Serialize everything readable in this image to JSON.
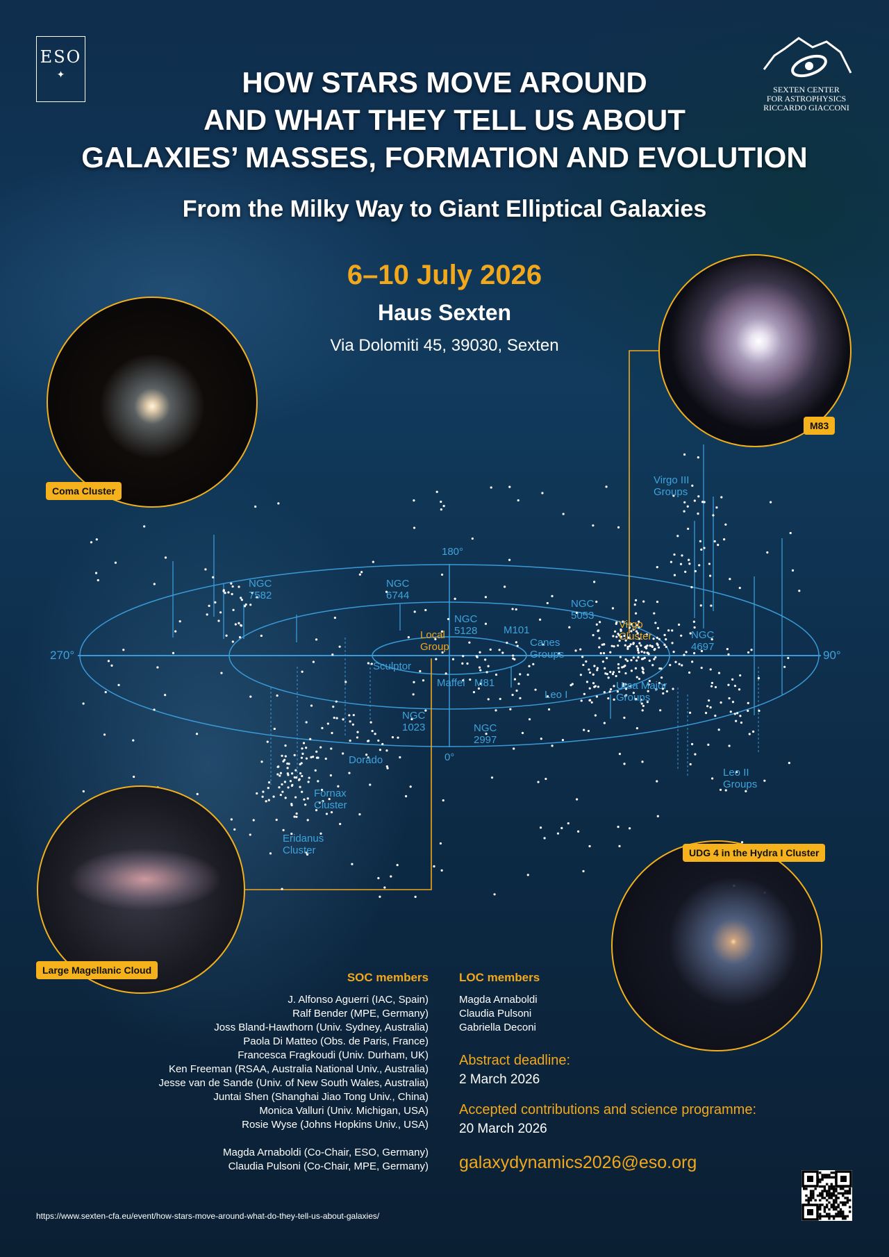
{
  "logos": {
    "eso": "ESO",
    "sexten": [
      "SEXTEN CENTER",
      "FOR ASTROPHYSICS",
      "RICCARDO GIACCONI"
    ]
  },
  "title": [
    "HOW STARS MOVE AROUND",
    "AND WHAT THEY TELL US ABOUT",
    "GALAXIES’ MASSES, FORMATION AND EVOLUTION"
  ],
  "subtitle": "From the Milky Way to Giant Elliptical Galaxies",
  "date": "6–10 July 2026",
  "venue": "Haus Sexten",
  "address": "Via Dolomiti 45, 39030, Sexten",
  "images": {
    "coma": "Coma Cluster",
    "m83": "M83",
    "lmc": "Large Magellanic Cloud",
    "udg": "UDG 4 in the Hydra I Cluster"
  },
  "map": {
    "angles": {
      "a180": "180°",
      "a0": "0°",
      "a270": "270°",
      "a90": "90°"
    },
    "labels": {
      "ngc7582": [
        "NGC",
        "7582"
      ],
      "ngc6744": [
        "NGC",
        "6744"
      ],
      "ngc5128": [
        "NGC",
        "5128"
      ],
      "m101": "M101",
      "ngc5053": [
        "NGC",
        "5053"
      ],
      "canes": [
        "Canes",
        "Groups"
      ],
      "virgo": [
        "Virgo",
        "Cluster"
      ],
      "ngc4697": [
        "NGC",
        "4697"
      ],
      "local": [
        "Local",
        "Group"
      ],
      "sculptor": "Sculptor",
      "maffei": "Maffei",
      "m81": "M81",
      "leo1": "Leo I",
      "ursa": [
        "Ursa Major",
        "Groups"
      ],
      "ngc1023": [
        "NGC",
        "1023"
      ],
      "ngc2997": [
        "NGC",
        "2997"
      ],
      "dorado": "Dorado",
      "fornax": [
        "Fornax",
        "Cluster"
      ],
      "eridanus": [
        "Eridanus",
        "Cluster"
      ],
      "leo2": [
        "Leo II",
        "Groups"
      ],
      "virgo3": [
        "Virgo III",
        "Groups"
      ]
    },
    "colors": {
      "line": "#3a9ad8",
      "highlight": "#f2a81d"
    }
  },
  "soc": {
    "heading": "SOC members",
    "members": [
      "J. Alfonso Aguerri (IAC, Spain)",
      "Ralf Bender (MPE, Germany)",
      "Joss Bland-Hawthorn (Univ. Sydney, Australia)",
      "Paola Di Matteo (Obs. de Paris, France)",
      "Francesca Fragkoudi (Univ. Durham, UK)",
      "Ken Freeman (RSAA, Australia National Univ., Australia)",
      "Jesse van de Sande (Univ. of New South Wales, Australia)",
      "Juntai Shen (Shanghai Jiao Tong Univ., China)",
      "Monica Valluri (Univ. Michigan, USA)",
      "Rosie Wyse (Johns Hopkins Univ., USA)"
    ],
    "chairs": [
      "Magda Arnaboldi (Co-Chair, ESO, Germany)",
      "Claudia Pulsoni (Co-Chair, MPE, Germany)"
    ]
  },
  "loc": {
    "heading": "LOC members",
    "members": [
      "Magda Arnaboldi",
      "Claudia Pulsoni",
      "Gabriella Deconi"
    ]
  },
  "deadlines": {
    "abstract_label": "Abstract deadline:",
    "abstract_date": "2 March 2026",
    "accepted_label": "Accepted contributions and science programme:",
    "accepted_date": "20 March 2026"
  },
  "email": "galaxydynamics2026@eso.org",
  "url": "https://www.sexten-cfa.eu/event/how-stars-move-around-what-do-they-tell-us-about-galaxies/",
  "qr_icon": "qr-code"
}
